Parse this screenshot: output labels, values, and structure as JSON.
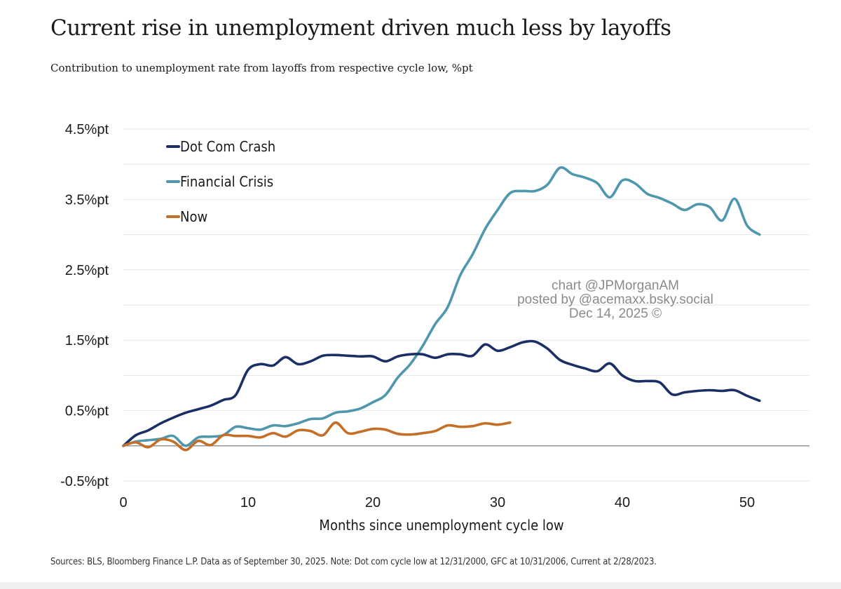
{
  "chart_data": {
    "type": "line",
    "title": "Current rise in unemployment driven much less by layoffs",
    "subtitle": "Contribution to unemployment rate from layoffs from respective cycle low, %pt",
    "xlabel": "Months since unemployment cycle low",
    "ylabel": "",
    "xlim": [
      0,
      55
    ],
    "ylim": [
      -0.5,
      4.5
    ],
    "x_ticks": [
      0,
      10,
      20,
      30,
      40,
      50
    ],
    "y_ticks": [
      {
        "value": 4.5,
        "label": "4.5%pt"
      },
      {
        "value": 3.5,
        "label": "3.5%pt"
      },
      {
        "value": 2.5,
        "label": "2.5%pt"
      },
      {
        "value": 1.5,
        "label": "1.5%pt"
      },
      {
        "value": 0.5,
        "label": "0.5%pt"
      },
      {
        "value": -0.5,
        "label": "-0.5%pt"
      }
    ],
    "grid": true,
    "legend_position": "top-left",
    "series": [
      {
        "name": "Dot Com Crash",
        "color": "#1b2f64",
        "x": [
          0,
          1,
          2,
          3,
          4,
          5,
          6,
          7,
          8,
          9,
          10,
          11,
          12,
          13,
          14,
          15,
          16,
          17,
          18,
          19,
          20,
          21,
          22,
          23,
          24,
          25,
          26,
          27,
          28,
          29,
          30,
          31,
          32,
          33,
          34,
          35,
          36,
          37,
          38,
          39,
          40,
          41,
          42,
          43,
          44,
          45,
          46,
          47,
          48,
          49,
          50,
          51
        ],
        "values": [
          0.0,
          0.15,
          0.22,
          0.32,
          0.4,
          0.47,
          0.52,
          0.57,
          0.65,
          0.72,
          1.08,
          1.16,
          1.14,
          1.26,
          1.16,
          1.2,
          1.28,
          1.29,
          1.28,
          1.27,
          1.27,
          1.2,
          1.27,
          1.3,
          1.3,
          1.25,
          1.3,
          1.3,
          1.28,
          1.44,
          1.35,
          1.4,
          1.47,
          1.48,
          1.38,
          1.22,
          1.15,
          1.1,
          1.06,
          1.17,
          1.0,
          0.92,
          0.92,
          0.9,
          0.73,
          0.76,
          0.78,
          0.79,
          0.78,
          0.79,
          0.71,
          0.64
        ]
      },
      {
        "name": "Financial Crisis",
        "color": "#4e97ad",
        "x": [
          0,
          1,
          2,
          3,
          4,
          5,
          6,
          7,
          8,
          9,
          10,
          11,
          12,
          13,
          14,
          15,
          16,
          17,
          18,
          19,
          20,
          21,
          22,
          23,
          24,
          25,
          26,
          27,
          28,
          29,
          30,
          31,
          32,
          33,
          34,
          35,
          36,
          37,
          38,
          39,
          40,
          41,
          42,
          43,
          44,
          45,
          46,
          47,
          48,
          49,
          50,
          51
        ],
        "values": [
          0.0,
          0.06,
          0.08,
          0.1,
          0.14,
          0.0,
          0.12,
          0.13,
          0.15,
          0.27,
          0.25,
          0.23,
          0.29,
          0.28,
          0.32,
          0.38,
          0.39,
          0.47,
          0.49,
          0.53,
          0.62,
          0.72,
          0.97,
          1.16,
          1.42,
          1.73,
          1.97,
          2.42,
          2.72,
          3.08,
          3.35,
          3.59,
          3.62,
          3.62,
          3.71,
          3.95,
          3.86,
          3.81,
          3.73,
          3.53,
          3.77,
          3.73,
          3.58,
          3.52,
          3.44,
          3.35,
          3.43,
          3.39,
          3.2,
          3.51,
          3.13,
          3.0
        ]
      },
      {
        "name": "Now",
        "color": "#c46f28",
        "x": [
          0,
          1,
          2,
          3,
          4,
          5,
          6,
          7,
          8,
          9,
          10,
          11,
          12,
          13,
          14,
          15,
          16,
          17,
          18,
          19,
          20,
          21,
          22,
          23,
          24,
          25,
          26,
          27,
          28,
          29,
          30,
          31
        ],
        "values": [
          0.0,
          0.05,
          -0.02,
          0.09,
          0.06,
          -0.06,
          0.07,
          0.01,
          0.15,
          0.14,
          0.14,
          0.12,
          0.18,
          0.13,
          0.22,
          0.21,
          0.15,
          0.33,
          0.18,
          0.2,
          0.24,
          0.23,
          0.17,
          0.16,
          0.18,
          0.21,
          0.29,
          0.27,
          0.28,
          0.32,
          0.3,
          0.33
        ]
      }
    ]
  },
  "watermark": {
    "line1": "chart @JPMorganAM",
    "line2": "posted by @acemaxx.bsky.social",
    "line3": "Dec 14, 2025 ©"
  },
  "source_note": "Sources: BLS, Bloomberg Finance L.P. Data as of September 30, 2025. Note: Dot com cycle low at 12/31/2000, GFC at 10/31/2006, Current at 2/28/2023."
}
